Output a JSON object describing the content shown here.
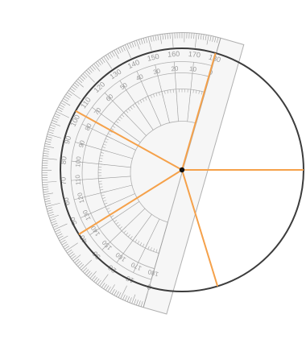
{
  "protractor": {
    "outer_labels": [
      "0",
      "10",
      "20",
      "30",
      "40",
      "50",
      "60",
      "70",
      "80",
      "90",
      "100",
      "110",
      "120",
      "130",
      "140",
      "150",
      "160",
      "170",
      "180"
    ],
    "inner_labels": [
      "180",
      "170",
      "160",
      "150",
      "140",
      "130",
      "120",
      "110",
      "100",
      "90",
      "80",
      "70",
      "60",
      "50",
      "40",
      "30",
      "20",
      "10",
      "0"
    ],
    "colors": {
      "body": "#f6f6f6",
      "stroke": "#b0b0b0",
      "ticks": "#9a9a9a",
      "text": "#9a9a9a"
    }
  },
  "circle": {
    "colors": {
      "outline": "#3c3c3c",
      "radii": "#f5a14a",
      "center": "#111111"
    }
  }
}
